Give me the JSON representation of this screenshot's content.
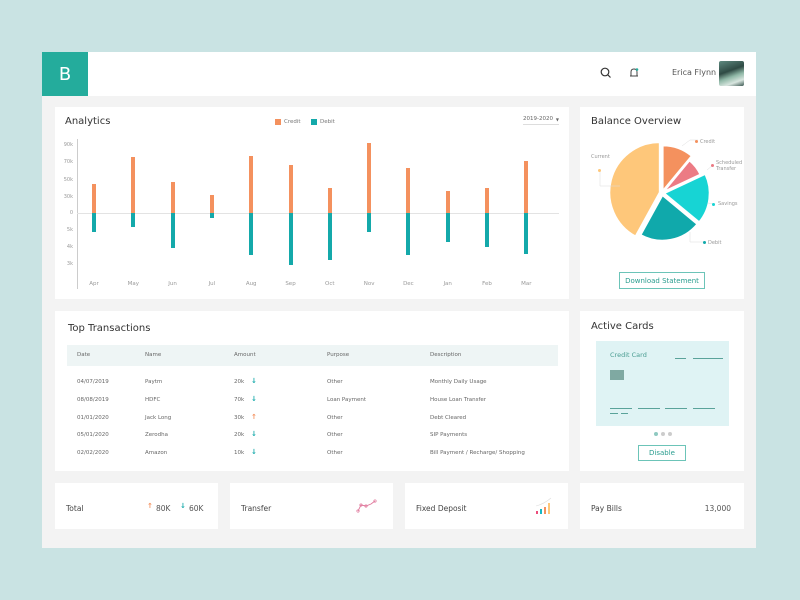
{
  "header": {
    "logo_letter": "B",
    "user_name": "Erica Flynn",
    "icons": [
      "search-icon",
      "bell-icon"
    ]
  },
  "analytics": {
    "title": "Analytics",
    "legend": [
      {
        "label": "Credit",
        "color": "#f4915e"
      },
      {
        "label": "Debit",
        "color": "#14a9aa"
      }
    ],
    "year_select": "2019-2020"
  },
  "chart_data": {
    "type": "bar",
    "title": "Analytics",
    "categories": [
      "Apr",
      "May",
      "Jun",
      "Jul",
      "Aug",
      "Sep",
      "Oct",
      "Nov",
      "Dec",
      "Jan",
      "Feb",
      "Mar"
    ],
    "y_ticks": [
      "90k",
      "70k",
      "50k",
      "30k",
      "0",
      "5k",
      "4k",
      "3k"
    ],
    "series": [
      {
        "name": "Credit",
        "color": "#f4915e",
        "values": [
          35,
          68,
          38,
          22,
          70,
          58,
          30,
          85,
          55,
          27,
          31,
          64
        ]
      },
      {
        "name": "Debit",
        "color": "#14a9aa",
        "values": [
          -19,
          -14,
          -35,
          -5,
          -42,
          -52,
          -47,
          -19,
          -42,
          -29,
          -34,
          -41
        ]
      }
    ],
    "xlabel": "",
    "ylabel": "",
    "grid": false,
    "legend_position": "top"
  },
  "balance": {
    "title": "Balance Overview",
    "slices": [
      {
        "label": "Credit",
        "color": "#f4915e",
        "value": 11
      },
      {
        "label": "Scheduled Transfer",
        "color": "#ec7b84",
        "value": 7
      },
      {
        "label": "Savings",
        "color": "#17d4d4",
        "value": 18
      },
      {
        "label": "Debit",
        "color": "#10a9ab",
        "value": 22
      },
      {
        "label": "Current",
        "color": "#fec77a",
        "value": 42
      }
    ],
    "labels": {
      "credit": "Credit",
      "scheduled_1": "Scheduled",
      "scheduled_2": "Transfer",
      "savings": "Savings",
      "debit": "Debit",
      "current": "Current"
    },
    "download_button": "Download Statement"
  },
  "transactions": {
    "title": "Top Transactions",
    "columns": [
      "Date",
      "Name",
      "Amount",
      "Purpose",
      "Description"
    ],
    "rows": [
      {
        "date": "04/07/2019",
        "name": "Paytm",
        "amount": "20k",
        "direction": "down",
        "purpose": "Other",
        "description": "Monthly Daily Usage"
      },
      {
        "date": "08/08/2019",
        "name": "HDFC",
        "amount": "70k",
        "direction": "down",
        "purpose": "Loan Payment",
        "description": "House Loan Transfer"
      },
      {
        "date": "01/01/2020",
        "name": "Jack Long",
        "amount": "30k",
        "direction": "up",
        "purpose": "Other",
        "description": "Debt Cleared"
      },
      {
        "date": "05/01/2020",
        "name": "Zerodha",
        "amount": "20k",
        "direction": "down",
        "purpose": "Other",
        "description": "SIP Payments"
      },
      {
        "date": "02/02/2020",
        "name": "Amazon",
        "amount": "10k",
        "direction": "down",
        "purpose": "Other",
        "description": "Bill Payment / Recharge/ Shopping"
      }
    ],
    "arrows": {
      "up": "↑",
      "down": "↓"
    }
  },
  "active_cards": {
    "title": "Active Cards",
    "card_label": "Credit Card",
    "pager_count": 3,
    "active_index": 0,
    "disable_button": "Disable"
  },
  "stats": {
    "total": {
      "label": "Total",
      "up_value": "80K",
      "down_value": "60K"
    },
    "transfer": {
      "label": "Transfer"
    },
    "fixed_deposit": {
      "label": "Fixed Deposit"
    },
    "pay_bills": {
      "label": "Pay Bills",
      "value": "13,000"
    }
  },
  "colors": {
    "brand": "#24ac9c",
    "credit": "#f4915e",
    "debit": "#14a9aa",
    "background": "#c9e3e3"
  }
}
